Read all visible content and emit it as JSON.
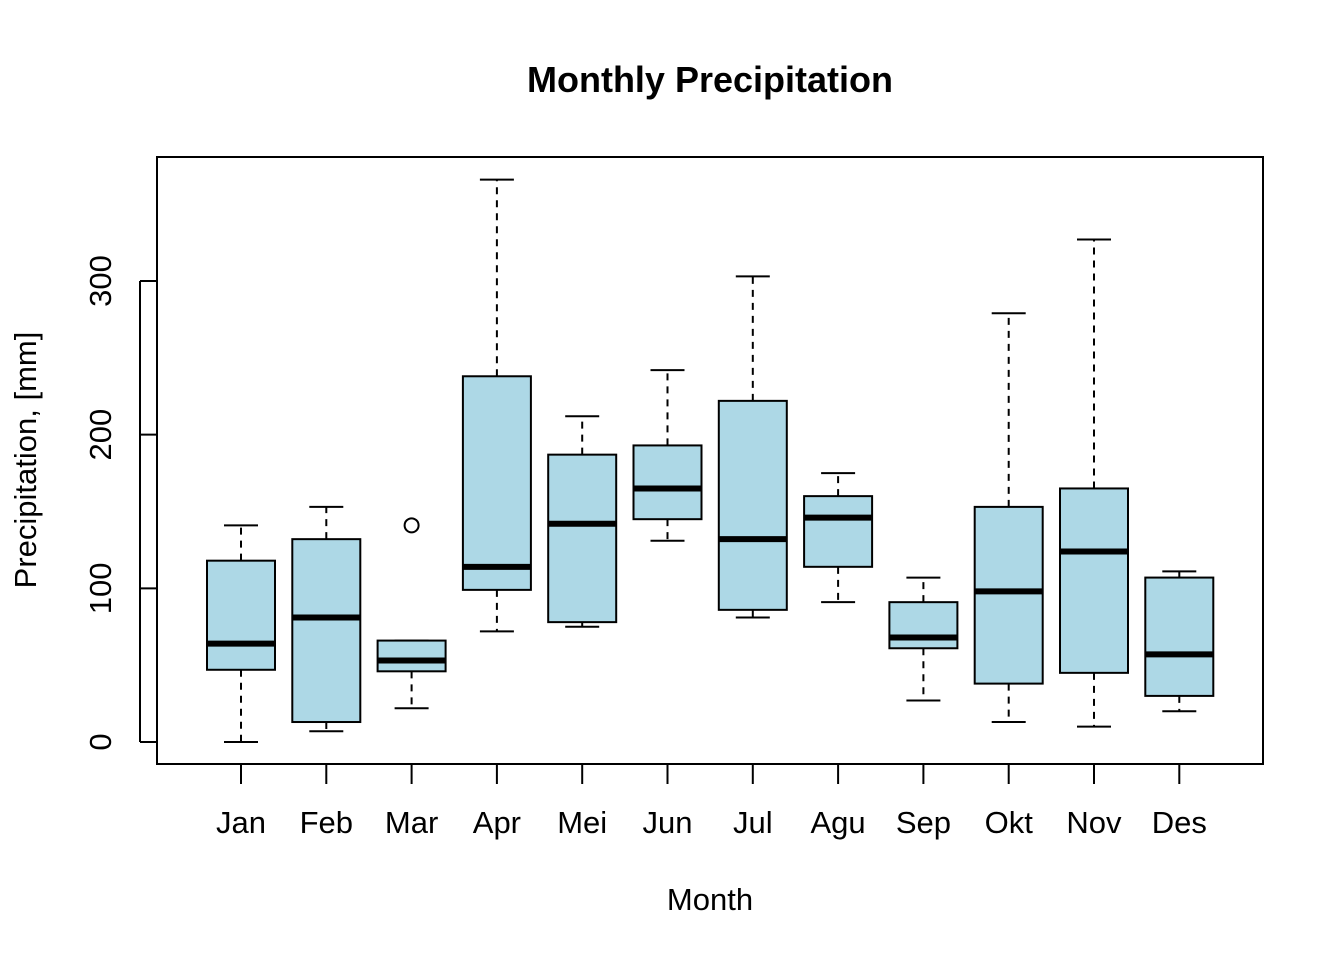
{
  "chart_data": {
    "type": "boxplot",
    "title": "Monthly Precipitation",
    "xlabel": "Month",
    "ylabel": "Precipitation, [mm]",
    "categories": [
      "Jan",
      "Feb",
      "Mar",
      "Apr",
      "Mei",
      "Jun",
      "Jul",
      "Agu",
      "Sep",
      "Okt",
      "Nov",
      "Des"
    ],
    "boxes": [
      {
        "min": 0,
        "q1": 47,
        "median": 64,
        "q3": 118,
        "max": 141,
        "outliers": []
      },
      {
        "min": 7,
        "q1": 13,
        "median": 81,
        "q3": 132,
        "max": 153,
        "outliers": []
      },
      {
        "min": 22,
        "q1": 46,
        "median": 53,
        "q3": 66,
        "max": 66,
        "outliers": [
          141
        ]
      },
      {
        "min": 72,
        "q1": 99,
        "median": 114,
        "q3": 238,
        "max": 366,
        "outliers": []
      },
      {
        "min": 75,
        "q1": 78,
        "median": 142,
        "q3": 187,
        "max": 212,
        "outliers": []
      },
      {
        "min": 131,
        "q1": 145,
        "median": 165,
        "q3": 193,
        "max": 242,
        "outliers": []
      },
      {
        "min": 81,
        "q1": 86,
        "median": 132,
        "q3": 222,
        "max": 303,
        "outliers": []
      },
      {
        "min": 91,
        "q1": 114,
        "median": 146,
        "q3": 160,
        "max": 175,
        "outliers": []
      },
      {
        "min": 27,
        "q1": 61,
        "median": 68,
        "q3": 91,
        "max": 107,
        "outliers": []
      },
      {
        "min": 13,
        "q1": 38,
        "median": 98,
        "q3": 153,
        "max": 279,
        "outliers": []
      },
      {
        "min": 10,
        "q1": 45,
        "median": 124,
        "q3": 165,
        "max": 327,
        "outliers": []
      },
      {
        "min": 20,
        "q1": 30,
        "median": 57,
        "q3": 107,
        "max": 111,
        "outliers": []
      }
    ],
    "yticks": [
      0,
      100,
      200,
      300
    ],
    "ylim": [
      -14,
      380
    ],
    "grid": false,
    "box_color": "#add8e6"
  }
}
